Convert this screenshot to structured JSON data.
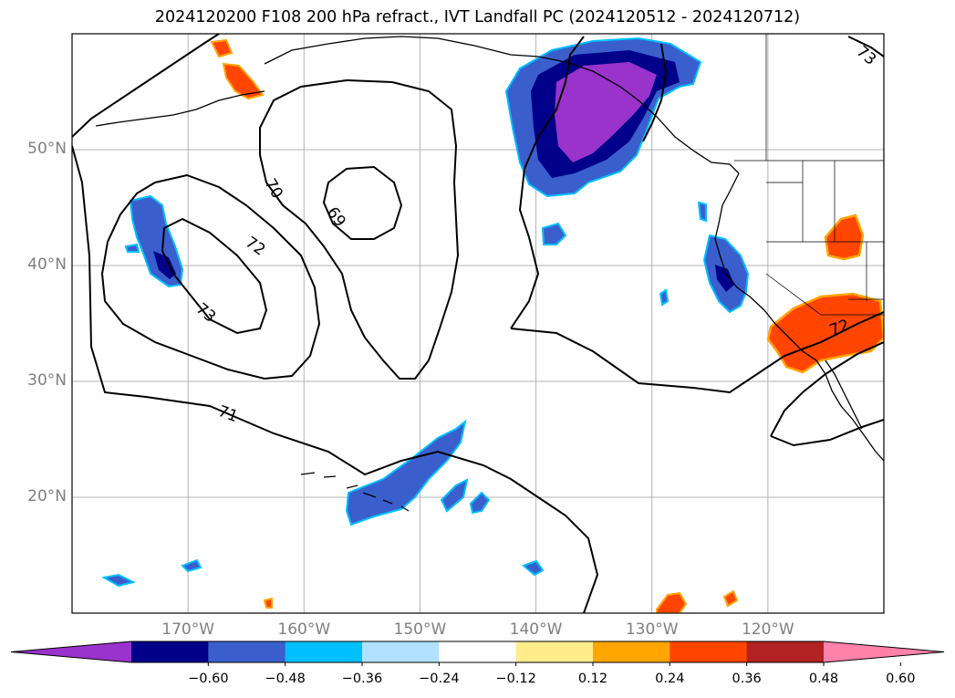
{
  "title": "2024120200 F108 200 hPa refract., IVT Landfall PC (2024120512 - 2024120712)",
  "map": {
    "projection": "plate-carree",
    "lon_range": [
      -180,
      -110
    ],
    "lat_range": [
      10,
      60
    ],
    "lat_ticks": [
      {
        "value": 50,
        "label": "50°N"
      },
      {
        "value": 40,
        "label": "40°N"
      },
      {
        "value": 30,
        "label": "30°N"
      },
      {
        "value": 20,
        "label": "20°N"
      }
    ],
    "lon_ticks": [
      {
        "value": -170,
        "label": "170°W"
      },
      {
        "value": -160,
        "label": "160°W"
      },
      {
        "value": -150,
        "label": "150°W"
      },
      {
        "value": -140,
        "label": "140°W"
      },
      {
        "value": -130,
        "label": "130°W"
      },
      {
        "value": -120,
        "label": "120°W"
      }
    ],
    "gridlines": true,
    "contour_labels": [
      "70",
      "69",
      "72",
      "73",
      "71",
      "73",
      "72"
    ]
  },
  "colorbar": {
    "orientation": "horizontal",
    "extend": "both",
    "colors": [
      "#9933cc",
      "#00008b",
      "#3a5fcd",
      "#00bfff",
      "#b0e2ff",
      "#ffffff",
      "#ffec8b",
      "#ffa500",
      "#ff4500",
      "#b22222",
      "#ff82ab"
    ],
    "ticks": [
      "−0.60",
      "−0.48",
      "−0.36",
      "−0.24",
      "−0.12",
      "0.12",
      "0.24",
      "0.36",
      "0.48",
      "0.60"
    ]
  }
}
